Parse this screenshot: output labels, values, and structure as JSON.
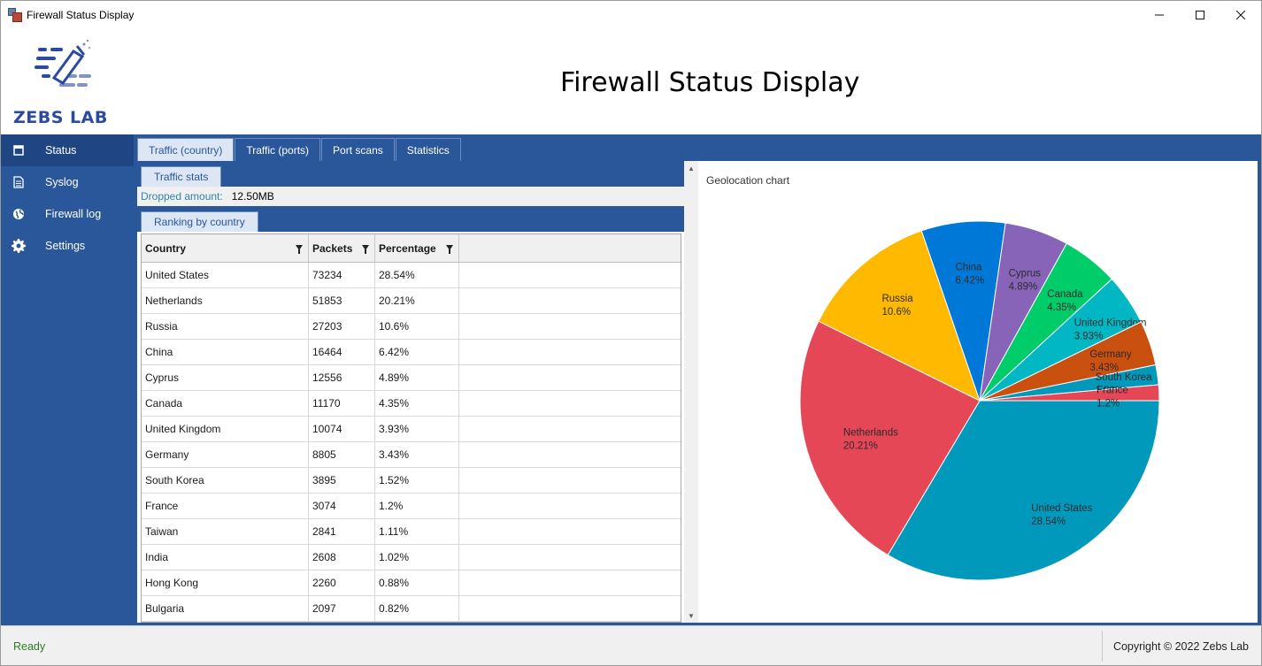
{
  "window": {
    "title": "Firewall Status Display",
    "controls": {
      "minimize": "─",
      "maximize": "☐",
      "close": "✕"
    }
  },
  "header": {
    "logo_text": "ZEBS LAB",
    "title": "Firewall Status Display",
    "brand_color": "#2b4aa0"
  },
  "sidebar": {
    "items": [
      {
        "label": "Status",
        "icon": "window-icon",
        "active": true
      },
      {
        "label": "Syslog",
        "icon": "document-icon",
        "active": false
      },
      {
        "label": "Firewall log",
        "icon": "globe-icon",
        "active": false
      },
      {
        "label": "Settings",
        "icon": "gear-icon",
        "active": false
      }
    ],
    "color": "#2a579a"
  },
  "tabs": [
    {
      "label": "Traffic (country)",
      "active": true
    },
    {
      "label": "Traffic (ports)",
      "active": false
    },
    {
      "label": "Port scans",
      "active": false
    },
    {
      "label": "Statistics",
      "active": false
    }
  ],
  "traffic_stats": {
    "tab_label": "Traffic stats",
    "dropped_label": "Dropped amount:",
    "dropped_value": "12.50MB"
  },
  "ranking": {
    "tab_label": "Ranking by country",
    "columns": [
      "Country",
      "Packets",
      "Percentage",
      ""
    ],
    "rows": [
      [
        "United States",
        "73234",
        "28.54%"
      ],
      [
        "Netherlands",
        "51853",
        "20.21%"
      ],
      [
        "Russia",
        "27203",
        "10.6%"
      ],
      [
        "China",
        "16464",
        "6.42%"
      ],
      [
        "Cyprus",
        "12556",
        "4.89%"
      ],
      [
        "Canada",
        "11170",
        "4.35%"
      ],
      [
        "United Kingdom",
        "10074",
        "3.93%"
      ],
      [
        "Germany",
        "8805",
        "3.43%"
      ],
      [
        "South Korea",
        "3895",
        "1.52%"
      ],
      [
        "France",
        "3074",
        "1.2%"
      ],
      [
        "Taiwan",
        "2841",
        "1.11%"
      ],
      [
        "India",
        "2608",
        "1.02%"
      ],
      [
        "Hong Kong",
        "2260",
        "0.88%"
      ],
      [
        "Bulgaria",
        "2097",
        "0.82%"
      ]
    ]
  },
  "chart_data": {
    "type": "pie",
    "title": "Geolocation chart",
    "slices": [
      {
        "label": "United States",
        "percent_label": "28.54%",
        "value": 28.54,
        "color": "#0099bc"
      },
      {
        "label": "Netherlands",
        "percent_label": "20.21%",
        "value": 20.21,
        "color": "#e64756"
      },
      {
        "label": "Russia",
        "percent_label": "10.6%",
        "value": 10.6,
        "color": "#ffb900"
      },
      {
        "label": "China",
        "percent_label": "6.42%",
        "value": 6.42,
        "color": "#0078d7"
      },
      {
        "label": "Cyprus",
        "percent_label": "4.89%",
        "value": 4.89,
        "color": "#8764b8"
      },
      {
        "label": "Canada",
        "percent_label": "4.35%",
        "value": 4.35,
        "color": "#00cc6a"
      },
      {
        "label": "United Kingdom",
        "percent_label": "3.93%",
        "value": 3.93,
        "color": "#00b7c3"
      },
      {
        "label": "Germany",
        "percent_label": "3.43%",
        "value": 3.43,
        "color": "#ca5010"
      },
      {
        "label": "South Korea",
        "percent_label": "1.52%",
        "value": 1.52,
        "color": "#0099bc"
      },
      {
        "label": "France",
        "percent_label": "1.2%",
        "value": 1.2,
        "color": "#e64756"
      }
    ]
  },
  "statusbar": {
    "status": "Ready",
    "status_color": "#2a7d1f",
    "copyright": "Copyright © 2022 Zebs Lab"
  }
}
